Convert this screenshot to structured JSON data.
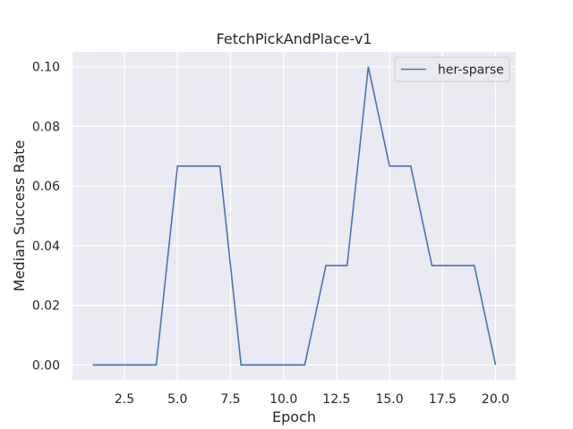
{
  "chart_data": {
    "type": "line",
    "title": "FetchPickAndPlace-v1",
    "xlabel": "Epoch",
    "ylabel": "Median Success Rate",
    "xlim": [
      0.05,
      20.95
    ],
    "ylim": [
      -0.005,
      0.105
    ],
    "x_ticks": [
      "2.5",
      "5.0",
      "7.5",
      "10.0",
      "12.5",
      "15.0",
      "17.5",
      "20.0"
    ],
    "x_tick_values": [
      2.5,
      5.0,
      7.5,
      10.0,
      12.5,
      15.0,
      17.5,
      20.0
    ],
    "y_ticks": [
      "0.00",
      "0.02",
      "0.04",
      "0.06",
      "0.08",
      "0.10"
    ],
    "y_tick_values": [
      0.0,
      0.02,
      0.04,
      0.06,
      0.08,
      0.1
    ],
    "grid": true,
    "legend_position": "upper right",
    "colors": {
      "background": "#eaeaf2",
      "grid": "#ffffff",
      "line": "#4c72b0"
    },
    "series": [
      {
        "name": "her-sparse",
        "x": [
          1,
          2,
          3,
          4,
          5,
          6,
          7,
          8,
          9,
          10,
          11,
          12,
          13,
          14,
          15,
          16,
          17,
          18,
          19,
          20
        ],
        "values": [
          0.0,
          0.0,
          0.0,
          0.0,
          0.0667,
          0.0667,
          0.0667,
          0.0,
          0.0,
          0.0,
          0.0,
          0.0333,
          0.0333,
          0.1,
          0.0667,
          0.0667,
          0.0333,
          0.0333,
          0.0333,
          0.0
        ]
      }
    ]
  }
}
